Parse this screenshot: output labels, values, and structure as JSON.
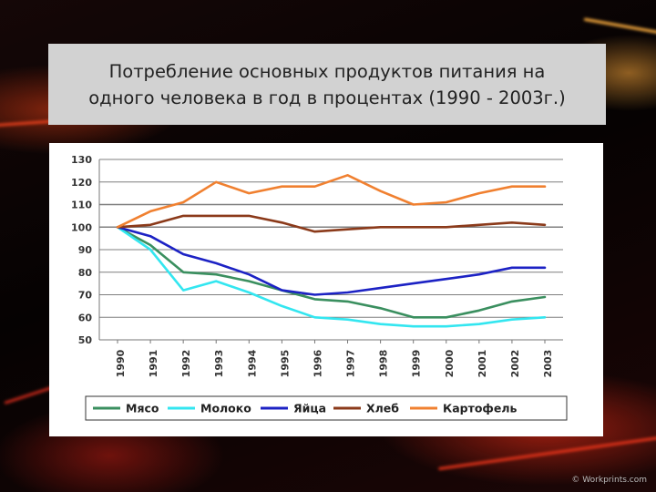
{
  "slide": {
    "title": "Потребление основных продуктов питания на\nодного человека в год в процентах (1990 - 2003г.)",
    "credit": "© Workprints.com"
  },
  "colors": {
    "grid": "#7f7f7f",
    "background_accent": "#d0301a",
    "title_box": "#d2d2d2"
  },
  "chart_data": {
    "type": "line",
    "title": "",
    "xlabel": "",
    "ylabel": "",
    "x": [
      "1990",
      "1991",
      "1992",
      "1993",
      "1994",
      "1995",
      "1996",
      "1997",
      "1998",
      "1999",
      "2000",
      "2001",
      "2002",
      "2003"
    ],
    "ylim": [
      50,
      130
    ],
    "yticks": [
      50,
      60,
      70,
      80,
      90,
      100,
      110,
      120,
      130
    ],
    "grid": true,
    "legend_position": "bottom",
    "series": [
      {
        "name": "Мясо",
        "color": "#3a8f5f",
        "values": [
          100,
          92,
          80,
          79,
          76,
          72,
          68,
          67,
          64,
          60,
          60,
          63,
          67,
          69
        ]
      },
      {
        "name": "Молоко",
        "color": "#33e6f0",
        "values": [
          100,
          90,
          72,
          76,
          71,
          65,
          60,
          59,
          57,
          56,
          56,
          57,
          59,
          60
        ]
      },
      {
        "name": "Яйца",
        "color": "#1c22c4",
        "values": [
          100,
          96,
          88,
          84,
          79,
          72,
          70,
          71,
          73,
          75,
          77,
          79,
          82,
          82
        ]
      },
      {
        "name": "Хлеб",
        "color": "#8b3a1a",
        "values": [
          100,
          101,
          105,
          105,
          105,
          102,
          98,
          99,
          100,
          100,
          100,
          101,
          102,
          101
        ]
      },
      {
        "name": "Картофель",
        "color": "#f08030",
        "values": [
          100,
          107,
          111,
          120,
          115,
          118,
          118,
          123,
          116,
          110,
          111,
          115,
          118,
          118
        ]
      }
    ]
  }
}
